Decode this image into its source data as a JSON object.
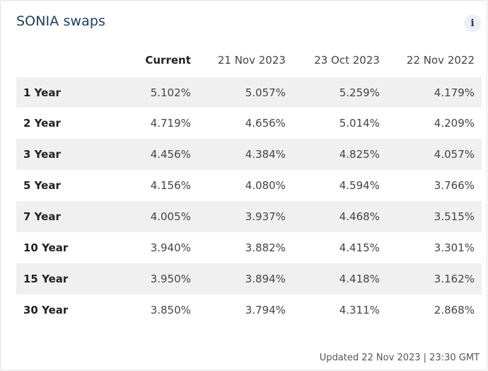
{
  "widget": {
    "title": "SONIA swaps",
    "info_icon": "info-icon",
    "info_glyph": "i"
  },
  "table": {
    "headers": [
      "",
      "Current",
      "21 Nov 2023",
      "23 Oct 2023",
      "22 Nov 2022"
    ],
    "rows": [
      {
        "label": "1 Year",
        "values": [
          "5.102%",
          "5.057%",
          "5.259%",
          "4.179%"
        ]
      },
      {
        "label": "2 Year",
        "values": [
          "4.719%",
          "4.656%",
          "5.014%",
          "4.209%"
        ]
      },
      {
        "label": "3 Year",
        "values": [
          "4.456%",
          "4.384%",
          "4.825%",
          "4.057%"
        ]
      },
      {
        "label": "5 Year",
        "values": [
          "4.156%",
          "4.080%",
          "4.594%",
          "3.766%"
        ]
      },
      {
        "label": "7 Year",
        "values": [
          "4.005%",
          "3.937%",
          "4.468%",
          "3.515%"
        ]
      },
      {
        "label": "10 Year",
        "values": [
          "3.940%",
          "3.882%",
          "4.415%",
          "3.301%"
        ]
      },
      {
        "label": "15 Year",
        "values": [
          "3.950%",
          "3.894%",
          "4.418%",
          "3.162%"
        ]
      },
      {
        "label": "30 Year",
        "values": [
          "3.850%",
          "3.794%",
          "4.311%",
          "2.868%"
        ]
      }
    ]
  },
  "footer": {
    "updated": "Updated 22 Nov 2023 | 23:30 GMT"
  },
  "colors": {
    "title": "#1b3d63",
    "stripe": "#f0f0f0"
  }
}
